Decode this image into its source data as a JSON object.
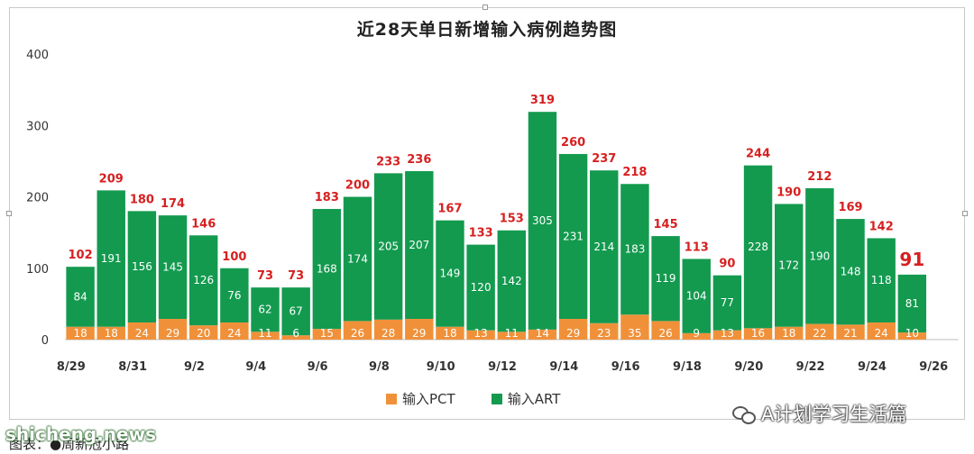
{
  "chart_data": {
    "type": "bar",
    "title": "近28天单日新增输入病例趋势图",
    "yticks": [
      0,
      100,
      200,
      300,
      400
    ],
    "ylim": [
      0,
      400
    ],
    "xtick_labels": [
      "8/29",
      "8/31",
      "9/2",
      "9/4",
      "9/6",
      "9/8",
      "9/10",
      "9/12",
      "9/14",
      "9/16",
      "9/18",
      "9/20",
      "9/22",
      "9/24",
      "9/26"
    ],
    "categories": [
      "8/29",
      "8/30",
      "8/31",
      "9/1",
      "9/2",
      "9/3",
      "9/4",
      "9/5",
      "9/6",
      "9/7",
      "9/8",
      "9/9",
      "9/10",
      "9/11",
      "9/12",
      "9/13",
      "9/14",
      "9/15",
      "9/16",
      "9/17",
      "9/18",
      "9/19",
      "9/20",
      "9/21",
      "9/22",
      "9/23",
      "9/24",
      "9/25"
    ],
    "series": [
      {
        "name": "输入PCT",
        "color": "#f0913a",
        "values": [
          18,
          18,
          24,
          29,
          20,
          24,
          11,
          6,
          15,
          26,
          28,
          29,
          18,
          13,
          11,
          14,
          29,
          23,
          35,
          26,
          9,
          13,
          16,
          18,
          22,
          21,
          24,
          10
        ]
      },
      {
        "name": "输入ART",
        "color": "#139a4f",
        "values": [
          84,
          191,
          156,
          145,
          126,
          76,
          62,
          67,
          168,
          174,
          205,
          207,
          149,
          120,
          142,
          305,
          231,
          214,
          183,
          119,
          104,
          77,
          228,
          172,
          190,
          148,
          118,
          81
        ]
      }
    ],
    "totals": [
      102,
      209,
      180,
      174,
      146,
      100,
      73,
      73,
      183,
      200,
      233,
      236,
      167,
      133,
      153,
      319,
      260,
      237,
      218,
      145,
      113,
      90,
      244,
      190,
      212,
      169,
      142,
      91
    ],
    "stacked": true,
    "legend": "bottom-center",
    "grid": false
  },
  "watermarks": {
    "right_text": "A计划学习生活篇",
    "left_text": "shicheng.news"
  },
  "caption": "图表：●周新冠小路"
}
